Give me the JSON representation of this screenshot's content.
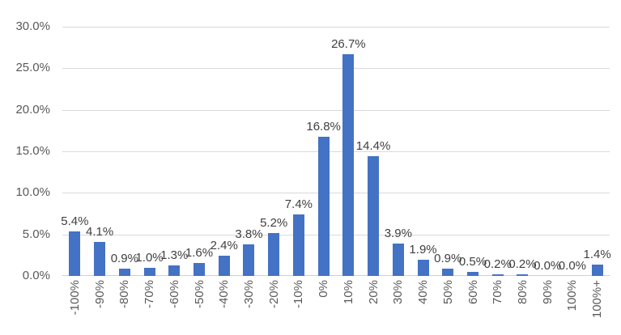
{
  "chart_data": {
    "type": "bar",
    "title": "",
    "xlabel": "",
    "ylabel": "",
    "categories": [
      "-100%",
      "-90%",
      "-80%",
      "-70%",
      "-60%",
      "-50%",
      "-40%",
      "-30%",
      "-20%",
      "-10%",
      "0%",
      "10%",
      "20%",
      "30%",
      "40%",
      "50%",
      "60%",
      "70%",
      "80%",
      "90%",
      "100%",
      "100%+"
    ],
    "values": [
      5.4,
      4.1,
      0.9,
      1.0,
      1.3,
      1.6,
      2.4,
      3.8,
      5.2,
      7.4,
      16.8,
      26.7,
      14.4,
      3.9,
      1.9,
      0.9,
      0.5,
      0.2,
      0.2,
      0.0,
      0.0,
      1.4
    ],
    "data_labels": [
      "5.4%",
      "4.1%",
      "0.9%",
      "1.0%",
      "1.3%",
      "1.6%",
      "2.4%",
      "3.8%",
      "5.2%",
      "7.4%",
      "16.8%",
      "26.7%",
      "14.4%",
      "3.9%",
      "1.9%",
      "0.9%",
      "0.5%",
      "0.2%",
      "0.2%",
      "0.0%",
      "0.0%",
      "1.4%"
    ],
    "ylim": [
      0,
      30
    ],
    "ytick_step": 5,
    "ytick_labels": [
      "0.0%",
      "5.0%",
      "10.0%",
      "15.0%",
      "20.0%",
      "25.0%",
      "30.0%"
    ],
    "grid": true,
    "legend": "none",
    "bar_color": "#4472C4",
    "data_label_color": "#404040",
    "axis_label_color": "#595959",
    "gridline_color": "#D9D9D9",
    "axisline_color": "#D0D0D0",
    "background_color": "#FFFFFF"
  }
}
